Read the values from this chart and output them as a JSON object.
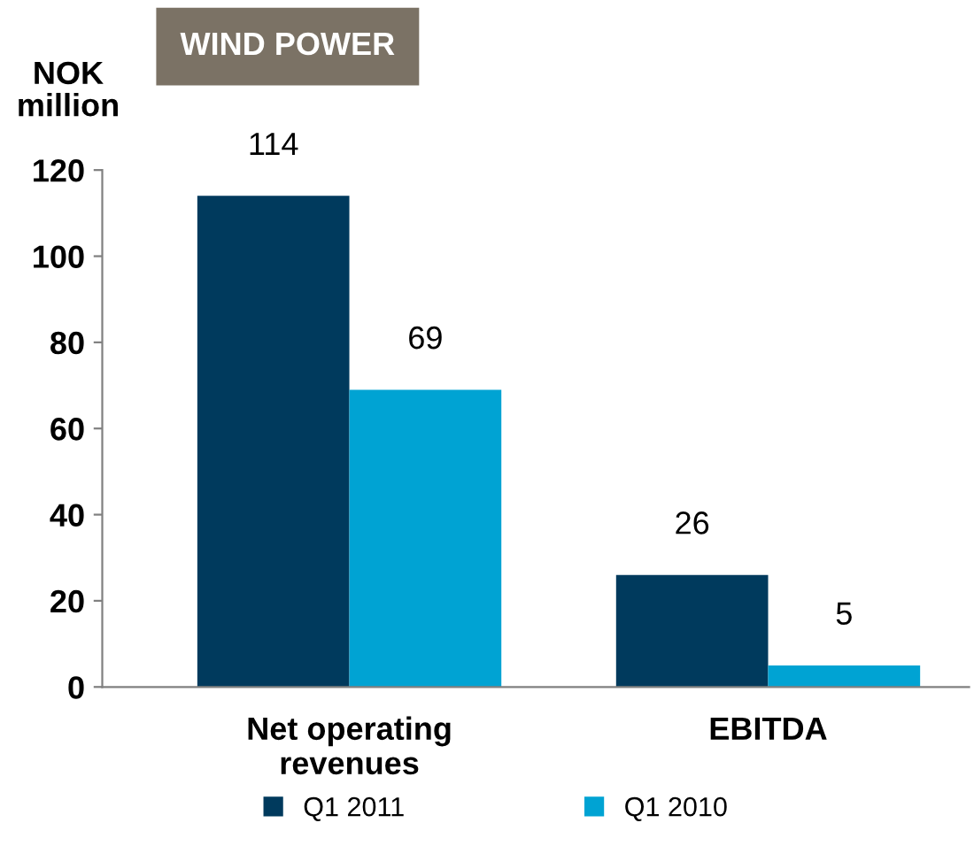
{
  "chart_data": {
    "type": "bar",
    "title": "WIND POWER",
    "ylabel": "NOK\nmillion",
    "categories": [
      "Net operating\nrevenues",
      "EBITDA"
    ],
    "series": [
      {
        "name": "Q1 2011",
        "color": "#003a5d",
        "values": [
          114,
          26
        ]
      },
      {
        "name": "Q1 2010",
        "color": "#00a3d3",
        "values": [
          69,
          5
        ]
      }
    ],
    "ylim": [
      0,
      120
    ],
    "yticks": [
      0,
      20,
      40,
      60,
      80,
      100,
      120
    ],
    "data_labels": true,
    "grid": false,
    "legend": "bottom"
  }
}
